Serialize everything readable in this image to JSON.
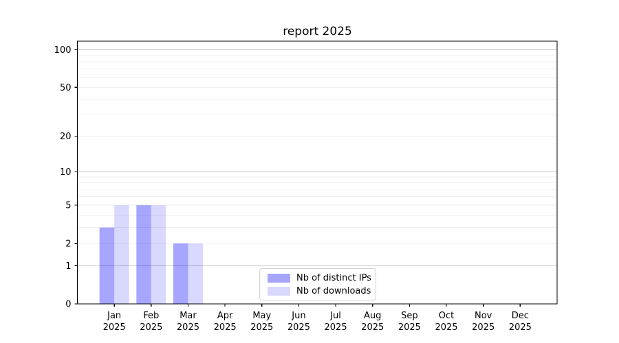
{
  "title": "report 2025",
  "chart_data": {
    "type": "bar",
    "title": "report 2025",
    "bar_layout": "grouped",
    "categories_months": [
      "Jan",
      "Feb",
      "Mar",
      "Apr",
      "May",
      "Jun",
      "Jul",
      "Aug",
      "Sep",
      "Oct",
      "Nov",
      "Dec"
    ],
    "categories_year": "2025",
    "series": [
      {
        "name": "Nb of distinct IPs",
        "color": "rgba(0,0,255,0.35)",
        "visible_color": "#a6a6fa",
        "values": [
          3,
          5,
          2,
          0,
          0,
          0,
          0,
          0,
          0,
          0,
          0,
          0
        ]
      },
      {
        "name": "Nb of downloads",
        "color": "rgba(0,0,255,0.15)",
        "visible_color": "#d9d9fd",
        "values": [
          5,
          5,
          2,
          0,
          0,
          0,
          0,
          0,
          0,
          0,
          0,
          0
        ]
      }
    ],
    "xlabel": "",
    "ylabel": "",
    "yscale": "log1p",
    "ylim": [
      0,
      115
    ],
    "y_ticks": [
      0,
      1,
      2,
      5,
      10,
      20,
      50,
      100
    ],
    "y_major_gridlines": [
      1,
      10,
      100
    ],
    "y_minor_gridlines": [
      2,
      3,
      4,
      5,
      6,
      7,
      8,
      9,
      20,
      30,
      40,
      50,
      60,
      70,
      80,
      90
    ],
    "grid": true,
    "legend_position": "lower center"
  },
  "colors": {
    "background": "#ffffff",
    "spine": "#000000",
    "tick_label": "#000000",
    "grid_major": "#c8c8c8",
    "grid_minor": "#efefef",
    "legend_border": "#d2d2d2"
  }
}
